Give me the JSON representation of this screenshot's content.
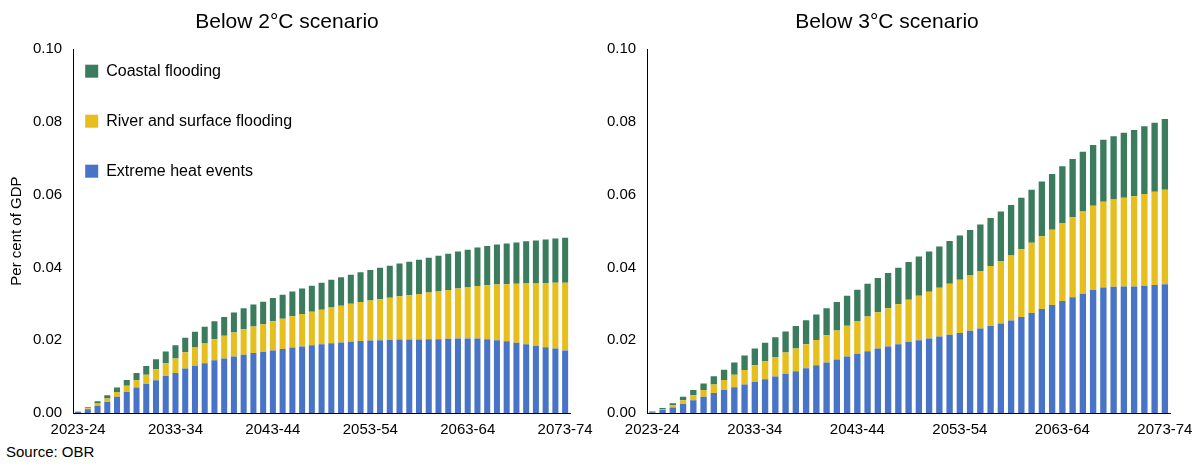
{
  "chart_data": [
    {
      "type": "bar",
      "title": "Below 2°C scenario",
      "y_label": "Per cent of GDP",
      "stacked": true,
      "grid": false,
      "legend": "upper left",
      "categories": [
        "2023-24",
        null,
        null,
        null,
        null,
        null,
        null,
        null,
        null,
        null,
        "2033-34",
        null,
        null,
        null,
        null,
        null,
        null,
        null,
        null,
        null,
        "2043-44",
        null,
        null,
        null,
        null,
        null,
        null,
        null,
        null,
        null,
        "2053-54",
        null,
        null,
        null,
        null,
        null,
        null,
        null,
        null,
        null,
        "2063-64",
        null,
        null,
        null,
        null,
        null,
        null,
        null,
        null,
        null,
        "2073-74"
      ],
      "ylim": [
        0,
        0.1
      ],
      "yticks": [
        {
          "value": 0,
          "label": "0.00"
        },
        {
          "value": 0.02,
          "label": "0.02"
        },
        {
          "value": 0.04,
          "label": "0.04"
        },
        {
          "value": 0.06,
          "label": "0.06"
        },
        {
          "value": 0.08,
          "label": "0.08"
        },
        {
          "value": 0.1,
          "label": "0.10"
        }
      ],
      "series": [
        {
          "name": "Extreme heat events",
          "color": "#4874c8",
          "values": [
            0.0003,
            0.001,
            0.002,
            0.003,
            0.0045,
            0.0058,
            0.007,
            0.008,
            0.009,
            0.0102,
            0.011,
            0.0122,
            0.013,
            0.0137,
            0.0145,
            0.015,
            0.0155,
            0.016,
            0.0165,
            0.0168,
            0.0172,
            0.0176,
            0.018,
            0.0183,
            0.0186,
            0.0189,
            0.0192,
            0.0194,
            0.0196,
            0.0198,
            0.0199,
            0.02,
            0.0201,
            0.0202,
            0.0202,
            0.0202,
            0.0203,
            0.0203,
            0.0204,
            0.0205,
            0.0205,
            0.0205,
            0.0203,
            0.02,
            0.0197,
            0.0193,
            0.0189,
            0.0185,
            0.0181,
            0.0177,
            0.0172
          ]
        },
        {
          "name": "River and surface flooding",
          "color": "#e6bf1e",
          "values": [
            0.0001,
            0.0003,
            0.0006,
            0.001,
            0.0013,
            0.0017,
            0.002,
            0.0025,
            0.003,
            0.0035,
            0.004,
            0.0045,
            0.005,
            0.0054,
            0.0058,
            0.0062,
            0.0066,
            0.007,
            0.0073,
            0.0076,
            0.008,
            0.0083,
            0.0086,
            0.0089,
            0.0092,
            0.0095,
            0.0098,
            0.0101,
            0.0104,
            0.0107,
            0.011,
            0.0113,
            0.0116,
            0.0119,
            0.0122,
            0.0125,
            0.0128,
            0.0131,
            0.0134,
            0.0137,
            0.014,
            0.0144,
            0.0148,
            0.0153,
            0.0157,
            0.0162,
            0.0167,
            0.0171,
            0.0176,
            0.0181,
            0.0186
          ]
        },
        {
          "name": "Coastal flooding",
          "color": "#3b7c5e",
          "values": [
            0.0001,
            0.0003,
            0.0006,
            0.0009,
            0.0012,
            0.0016,
            0.002,
            0.0024,
            0.0028,
            0.0032,
            0.0036,
            0.004,
            0.0043,
            0.0046,
            0.0049,
            0.0052,
            0.0055,
            0.0058,
            0.006,
            0.0062,
            0.0064,
            0.0066,
            0.0068,
            0.007,
            0.0072,
            0.0074,
            0.0076,
            0.0078,
            0.008,
            0.0082,
            0.0084,
            0.0086,
            0.0088,
            0.009,
            0.0092,
            0.0094,
            0.0096,
            0.0098,
            0.01,
            0.0102,
            0.0104,
            0.0106,
            0.0108,
            0.011,
            0.0112,
            0.0114,
            0.0116,
            0.0118,
            0.012,
            0.0122,
            0.0124
          ]
        }
      ]
    },
    {
      "type": "bar",
      "title": "Below 3°C scenario",
      "stacked": true,
      "grid": false,
      "categories": [
        "2023-24",
        null,
        null,
        null,
        null,
        null,
        null,
        null,
        null,
        null,
        "2033-34",
        null,
        null,
        null,
        null,
        null,
        null,
        null,
        null,
        null,
        "2043-44",
        null,
        null,
        null,
        null,
        null,
        null,
        null,
        null,
        null,
        "2053-54",
        null,
        null,
        null,
        null,
        null,
        null,
        null,
        null,
        null,
        "2063-64",
        null,
        null,
        null,
        null,
        null,
        null,
        null,
        null,
        null,
        "2073-74"
      ],
      "ylim": [
        0,
        0.1
      ],
      "yticks": [
        {
          "value": 0,
          "label": "0.00"
        },
        {
          "value": 0.02,
          "label": "0.02"
        },
        {
          "value": 0.04,
          "label": "0.04"
        },
        {
          "value": 0.06,
          "label": "0.06"
        },
        {
          "value": 0.08,
          "label": "0.08"
        },
        {
          "value": 0.1,
          "label": "0.10"
        }
      ],
      "series": [
        {
          "name": "Extreme heat events",
          "color": "#4874c8",
          "values": [
            0.0002,
            0.0008,
            0.0015,
            0.0025,
            0.0035,
            0.0045,
            0.0055,
            0.0063,
            0.0071,
            0.0078,
            0.0085,
            0.0093,
            0.01,
            0.0108,
            0.0115,
            0.0123,
            0.0131,
            0.0139,
            0.0147,
            0.0155,
            0.0163,
            0.017,
            0.0177,
            0.0183,
            0.0189,
            0.0195,
            0.02,
            0.0205,
            0.021,
            0.0215,
            0.022,
            0.0226,
            0.0232,
            0.0239,
            0.0246,
            0.0254,
            0.0264,
            0.0275,
            0.0286,
            0.0297,
            0.0308,
            0.0318,
            0.0328,
            0.0338,
            0.0345,
            0.0347,
            0.0348,
            0.0348,
            0.035,
            0.0352,
            0.0354
          ]
        },
        {
          "name": "River and surface flooding",
          "color": "#e6bf1e",
          "values": [
            0.0001,
            0.0003,
            0.0006,
            0.001,
            0.0014,
            0.0018,
            0.0023,
            0.0028,
            0.0034,
            0.004,
            0.0046,
            0.005,
            0.0054,
            0.0058,
            0.0062,
            0.0066,
            0.007,
            0.0075,
            0.008,
            0.0085,
            0.009,
            0.0095,
            0.01,
            0.0105,
            0.011,
            0.0116,
            0.0122,
            0.0128,
            0.0134,
            0.014,
            0.0146,
            0.0152,
            0.0158,
            0.0165,
            0.0172,
            0.0179,
            0.0186,
            0.0193,
            0.02,
            0.0207,
            0.0214,
            0.022,
            0.0226,
            0.0232,
            0.0236,
            0.024,
            0.0244,
            0.0248,
            0.0252,
            0.0256,
            0.026
          ]
        },
        {
          "name": "Coastal flooding",
          "color": "#3b7c5e",
          "values": [
            0.0001,
            0.0003,
            0.0006,
            0.001,
            0.0014,
            0.0018,
            0.0023,
            0.0028,
            0.0034,
            0.004,
            0.0046,
            0.005,
            0.0054,
            0.0058,
            0.0062,
            0.0066,
            0.007,
            0.0074,
            0.0078,
            0.0082,
            0.0086,
            0.009,
            0.0094,
            0.0097,
            0.01,
            0.0104,
            0.0108,
            0.0111,
            0.0114,
            0.0118,
            0.0122,
            0.0125,
            0.0128,
            0.0132,
            0.0136,
            0.0139,
            0.0142,
            0.0146,
            0.015,
            0.0153,
            0.0156,
            0.016,
            0.0164,
            0.0167,
            0.017,
            0.0174,
            0.0178,
            0.0182,
            0.0186,
            0.019,
            0.0194
          ]
        }
      ]
    }
  ],
  "source": "Source: OBR"
}
